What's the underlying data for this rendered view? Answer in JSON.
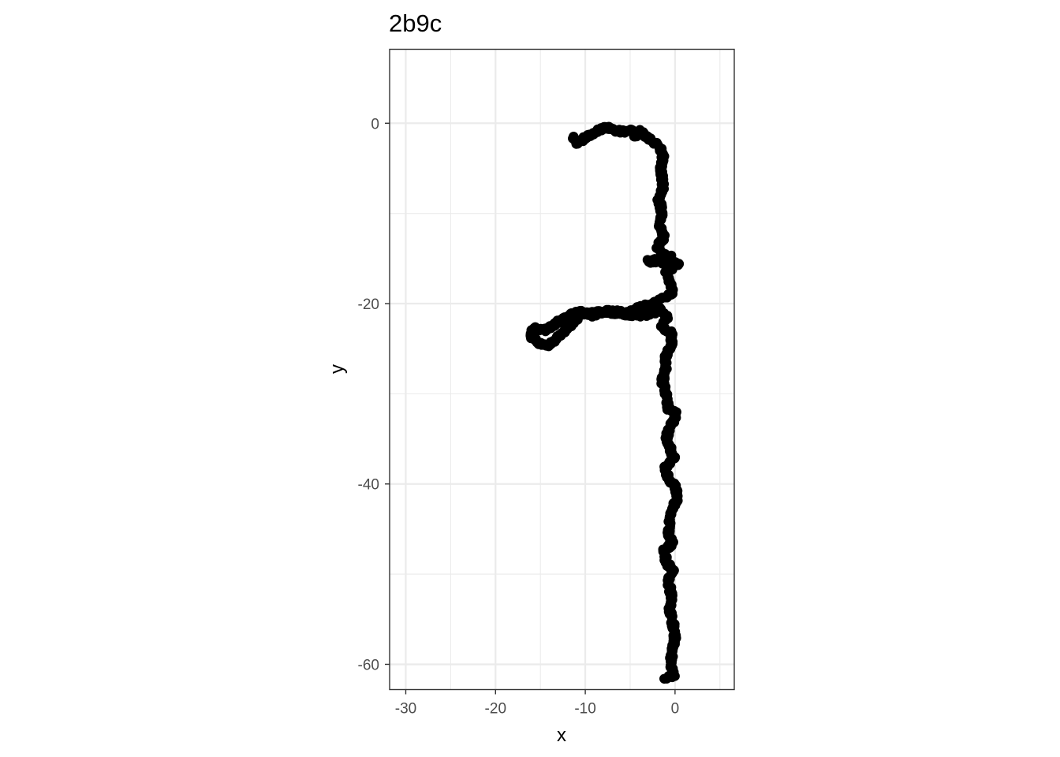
{
  "chart_data": {
    "type": "scatter",
    "title": "2b9c",
    "xlabel": "x",
    "ylabel": "y",
    "xlim": [
      -31.8,
      6.6
    ],
    "ylim": [
      -62.8,
      8.2
    ],
    "x_ticks": [
      -30,
      -20,
      -10,
      0
    ],
    "y_ticks": [
      0,
      -20,
      -40,
      -60
    ],
    "grid": true,
    "colors": {
      "points": "#000000",
      "grid": "#ebebeb",
      "panel_border": "#333333"
    },
    "path_vertices": [
      [
        -11.3,
        -1.5
      ],
      [
        -11.0,
        -2.2
      ],
      [
        -9.5,
        -1.4
      ],
      [
        -8.6,
        -0.8
      ],
      [
        -7.6,
        -0.4
      ],
      [
        -6.8,
        -0.8
      ],
      [
        -5.6,
        -0.9
      ],
      [
        -4.9,
        -0.6
      ],
      [
        -4.3,
        -1.5
      ],
      [
        -3.9,
        -0.9
      ],
      [
        -3.1,
        -1.6
      ],
      [
        -2.0,
        -2.3
      ],
      [
        -1.3,
        -3.3
      ],
      [
        -1.6,
        -5.2
      ],
      [
        -1.3,
        -7.0
      ],
      [
        -1.8,
        -8.5
      ],
      [
        -1.4,
        -10.0
      ],
      [
        -1.7,
        -11.5
      ],
      [
        -1.2,
        -12.6
      ],
      [
        -2.0,
        -13.8
      ],
      [
        -1.2,
        -14.6
      ],
      [
        -0.5,
        -14.8
      ],
      [
        -3.0,
        -15.3
      ],
      [
        0.5,
        -15.6
      ],
      [
        -1.0,
        -16.3
      ],
      [
        -0.6,
        -17.5
      ],
      [
        -0.2,
        -18.5
      ],
      [
        -0.9,
        -19.3
      ],
      [
        -1.9,
        -19.7
      ],
      [
        -3.5,
        -20.3
      ],
      [
        -5.5,
        -21.0
      ],
      [
        -7.5,
        -20.8
      ],
      [
        -9.2,
        -21.3
      ],
      [
        -10.7,
        -20.9
      ],
      [
        -12.3,
        -21.6
      ],
      [
        -13.5,
        -22.4
      ],
      [
        -14.4,
        -22.9
      ],
      [
        -15.6,
        -22.7
      ],
      [
        -16.2,
        -23.6
      ],
      [
        -15.1,
        -24.4
      ],
      [
        -13.9,
        -24.6
      ],
      [
        -13.2,
        -23.7
      ],
      [
        -12.4,
        -23.1
      ],
      [
        -10.5,
        -21.2
      ],
      [
        -8.0,
        -20.9
      ],
      [
        -5.5,
        -21.2
      ],
      [
        -3.2,
        -21.3
      ],
      [
        -1.6,
        -20.6
      ],
      [
        -0.9,
        -21.6
      ],
      [
        -1.5,
        -22.6
      ],
      [
        -0.3,
        -23.4
      ],
      [
        -0.5,
        -24.8
      ],
      [
        -1.0,
        -25.9
      ],
      [
        -1.1,
        -27.3
      ],
      [
        -1.4,
        -28.6
      ],
      [
        -1.0,
        -30.2
      ],
      [
        -0.7,
        -31.7
      ],
      [
        0.2,
        -32.3
      ],
      [
        -0.6,
        -33.6
      ],
      [
        -1.0,
        -35.0
      ],
      [
        -0.5,
        -36.2
      ],
      [
        -0.1,
        -37.2
      ],
      [
        -1.1,
        -38.1
      ],
      [
        -0.7,
        -39.6
      ],
      [
        0.1,
        -40.4
      ],
      [
        0.3,
        -41.6
      ],
      [
        -0.3,
        -42.8
      ],
      [
        -0.6,
        -44.2
      ],
      [
        -0.7,
        -45.5
      ],
      [
        -0.3,
        -46.6
      ],
      [
        -1.2,
        -47.4
      ],
      [
        -1.0,
        -48.7
      ],
      [
        -0.2,
        -49.5
      ],
      [
        -0.8,
        -50.8
      ],
      [
        -0.4,
        -52.3
      ],
      [
        -0.6,
        -54.0
      ],
      [
        -0.2,
        -55.6
      ],
      [
        0.0,
        -57.2
      ],
      [
        -0.4,
        -58.8
      ],
      [
        -0.4,
        -60.3
      ],
      [
        -0.1,
        -61.2
      ],
      [
        -1.2,
        -61.6
      ]
    ]
  }
}
